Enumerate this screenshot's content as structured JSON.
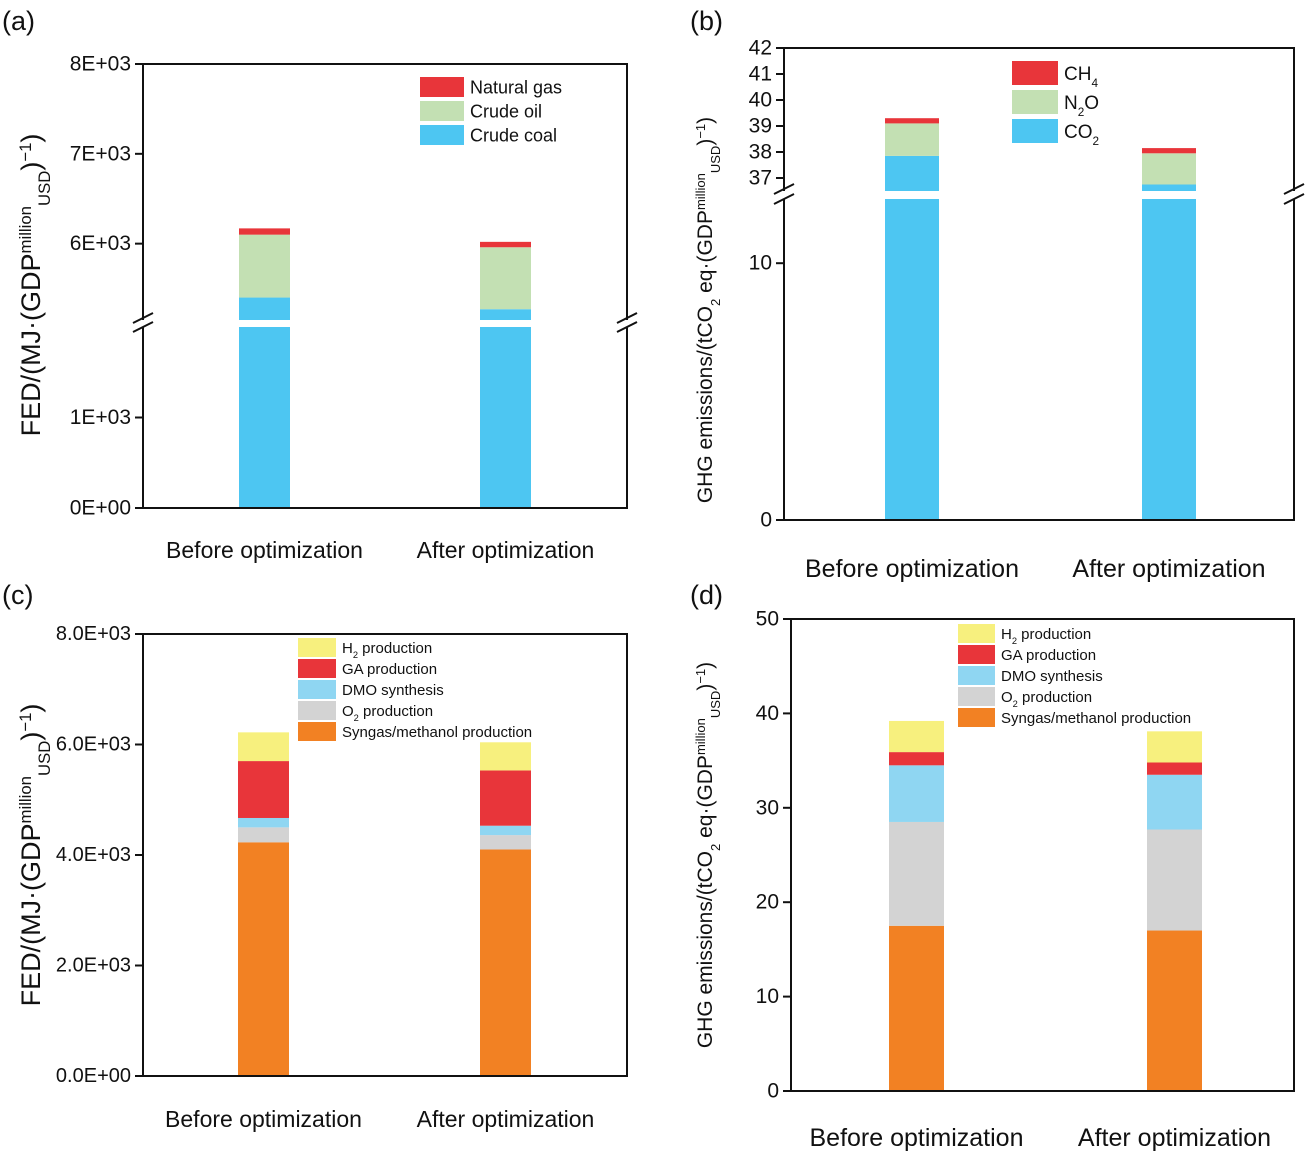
{
  "chart_data": [
    {
      "panel_label": "(a)",
      "type": "bar",
      "stacked": true,
      "broken_axis": true,
      "categories": [
        "Before optimization",
        "After optimization"
      ],
      "series": [
        {
          "name": "Crude coal",
          "color": "#4dc6f2",
          "values": [
            5400,
            5270
          ]
        },
        {
          "name": "Crude oil",
          "color": "#c3e0b3",
          "values": [
            700,
            690
          ]
        },
        {
          "name": "Natural gas",
          "color": "#e8353a",
          "values": [
            70,
            60
          ]
        }
      ],
      "ylabel": "FED/(MJ·(GDP",
      "ylabel_sup": "million",
      "ylabel_sub": "USD",
      "ylabel_tail": ")",
      "ylabel_tail_sup": "−1",
      "ylabel_end": ")",
      "lower_range": [
        0,
        2000
      ],
      "upper_range": [
        5150,
        8000
      ],
      "lower_ticks": [
        {
          "v": 0,
          "label": "0E+00"
        },
        {
          "v": 1000,
          "label": "1E+03"
        }
      ],
      "upper_ticks": [
        {
          "v": 6000,
          "label": "6E+03"
        },
        {
          "v": 7000,
          "label": "7E+03"
        },
        {
          "v": 8000,
          "label": "8E+03"
        }
      ],
      "legend_position": "top-right"
    },
    {
      "panel_label": "(b)",
      "type": "bar",
      "stacked": true,
      "broken_axis": true,
      "categories": [
        "Before optimization",
        "After optimization"
      ],
      "series": [
        {
          "name": "CO",
          "name_sub": "2",
          "color": "#4dc6f2",
          "values": [
            37.85,
            36.75
          ]
        },
        {
          "name": "N",
          "name_sub": "2",
          "name_tail": "O",
          "color": "#c3e0b3",
          "values": [
            1.25,
            1.2
          ]
        },
        {
          "name": "CH",
          "name_sub": "4",
          "color": "#e8353a",
          "values": [
            0.2,
            0.2
          ]
        }
      ],
      "ylabel": "GHG emissions/(tCO",
      "ylabel_sub0": "2",
      "ylabel_mid": " eq·(GDP",
      "ylabel_sup": "million",
      "ylabel_sub": "USD",
      "ylabel_tail": ")",
      "ylabel_tail_sup": "−1",
      "ylabel_end": ")",
      "lower_range": [
        0,
        12.5
      ],
      "upper_range": [
        36.5,
        42
      ],
      "lower_ticks": [
        {
          "v": 0,
          "label": "0"
        },
        {
          "v": 10,
          "label": "10"
        }
      ],
      "upper_ticks": [
        {
          "v": 37,
          "label": "37"
        },
        {
          "v": 38,
          "label": "38"
        },
        {
          "v": 39,
          "label": "39"
        },
        {
          "v": 40,
          "label": "40"
        },
        {
          "v": 41,
          "label": "41"
        },
        {
          "v": 42,
          "label": "42"
        }
      ],
      "legend_position": "top-center"
    },
    {
      "panel_label": "(c)",
      "type": "bar",
      "stacked": true,
      "broken_axis": false,
      "categories": [
        "Before optimization",
        "After optimization"
      ],
      "series": [
        {
          "name": "Syngas/methanol production",
          "color": "#f28123",
          "values": [
            4230,
            4100
          ]
        },
        {
          "name": "O",
          "name_sub": "2",
          "name_tail": " production",
          "color": "#d3d3d3",
          "values": [
            270,
            260
          ]
        },
        {
          "name": "DMO synthesis",
          "color": "#8fd6f2",
          "values": [
            170,
            170
          ]
        },
        {
          "name": "GA production",
          "color": "#e8353a",
          "values": [
            1030,
            1000
          ]
        },
        {
          "name": "H",
          "name_sub": "2",
          "name_tail": " production",
          "color": "#f7f07e",
          "values": [
            520,
            510
          ]
        }
      ],
      "ylabel": "FED/(MJ·(GDP",
      "ylabel_sup": "million",
      "ylabel_sub": "USD",
      "ylabel_tail": ")",
      "ylabel_tail_sup": "−1",
      "ylabel_end": ")",
      "ylim": [
        0,
        8000
      ],
      "ticks": [
        {
          "v": 0,
          "label": "0.0E+00"
        },
        {
          "v": 2000,
          "label": "2.0E+03"
        },
        {
          "v": 4000,
          "label": "4.0E+03"
        },
        {
          "v": 6000,
          "label": "6.0E+03"
        },
        {
          "v": 8000,
          "label": "8.0E+03"
        }
      ],
      "legend_position": "top-center"
    },
    {
      "panel_label": "(d)",
      "type": "bar",
      "stacked": true,
      "broken_axis": false,
      "categories": [
        "Before optimization",
        "After optimization"
      ],
      "series": [
        {
          "name": "Syngas/methanol production",
          "color": "#f28123",
          "values": [
            17.5,
            17.0
          ]
        },
        {
          "name": "O",
          "name_sub": "2",
          "name_tail": " production",
          "color": "#d3d3d3",
          "values": [
            11.0,
            10.7
          ]
        },
        {
          "name": "DMO synthesis",
          "color": "#8fd6f2",
          "values": [
            6.0,
            5.8
          ]
        },
        {
          "name": "GA production",
          "color": "#e8353a",
          "values": [
            1.4,
            1.3
          ]
        },
        {
          "name": "H",
          "name_sub": "2",
          "name_tail": " production",
          "color": "#f7f07e",
          "values": [
            3.3,
            3.3
          ]
        }
      ],
      "ylabel": "GHG emissions/(tCO",
      "ylabel_sub0": "2",
      "ylabel_mid": " eq·(GDP",
      "ylabel_sup": "million",
      "ylabel_sub": "USD",
      "ylabel_tail": ")",
      "ylabel_tail_sup": "−1",
      "ylabel_end": ")",
      "ylim": [
        0,
        50
      ],
      "ticks": [
        {
          "v": 0,
          "label": "0"
        },
        {
          "v": 10,
          "label": "10"
        },
        {
          "v": 20,
          "label": "20"
        },
        {
          "v": 30,
          "label": "30"
        },
        {
          "v": 40,
          "label": "40"
        },
        {
          "v": 50,
          "label": "50"
        }
      ],
      "legend_position": "top-center"
    }
  ]
}
